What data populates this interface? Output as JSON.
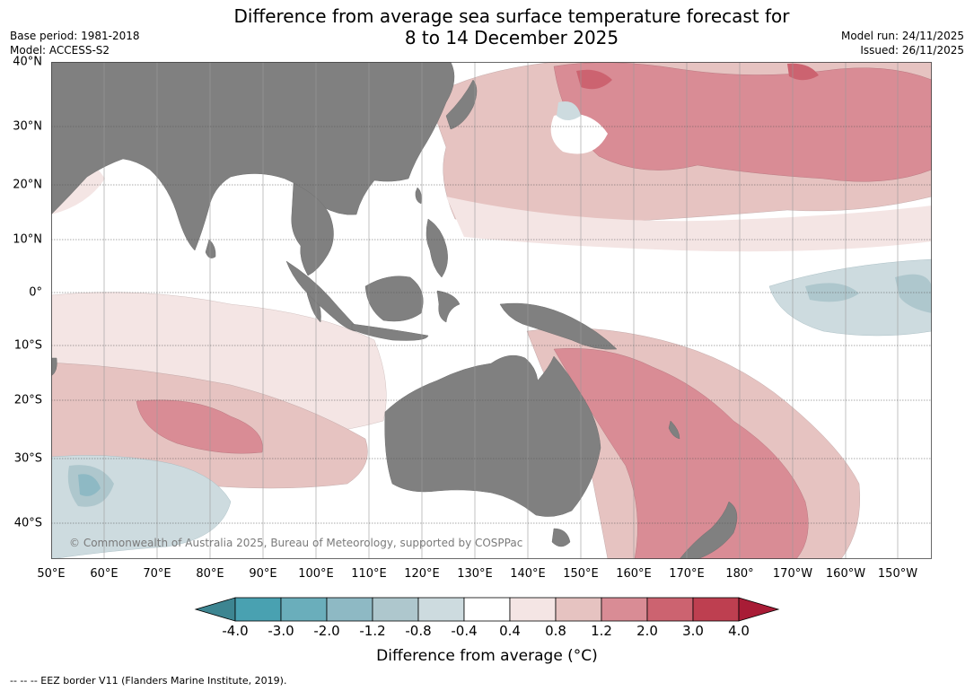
{
  "title": {
    "line1": "Difference from average sea surface temperature forecast for",
    "line2": "8 to 14 December 2025"
  },
  "meta": {
    "base_period": "Base period: 1981-2018",
    "model": "Model: ACCESS-S2",
    "model_run": "Model run: 24/11/2025",
    "issued": "Issued: 26/11/2025"
  },
  "map": {
    "lat_labels": [
      "40°N",
      "30°N",
      "20°N",
      "10°N",
      "0°",
      "10°S",
      "20°S",
      "30°S",
      "40°S"
    ],
    "lon_labels": [
      "50°E",
      "60°E",
      "70°E",
      "80°E",
      "90°E",
      "100°E",
      "110°E",
      "120°E",
      "130°E",
      "140°E",
      "150°E",
      "160°E",
      "170°E",
      "180°",
      "170°W",
      "160°W",
      "150°W"
    ],
    "land_color": "#808080",
    "copyright": "© Commonwealth of Australia 2025, Bureau of Meteorology, supported by COSPPac"
  },
  "colorbar": {
    "ticks": [
      "-4.0",
      "-3.0",
      "-2.0",
      "-1.2",
      "-0.8",
      "-0.4",
      "0.4",
      "0.8",
      "1.2",
      "2.0",
      "3.0",
      "4.0"
    ],
    "colors": [
      "#3d8591",
      "#49a1b1",
      "#6aaebb",
      "#8eb9c4",
      "#aec7cd",
      "#cddbdf",
      "#ffffff",
      "#f4e5e4",
      "#e6c3c1",
      "#d98c95",
      "#cc6370",
      "#be3f50",
      "#a81c36"
    ],
    "label": "Difference from average (°C)"
  },
  "footnote": "--  --  -- EEZ border V11 (Flanders Marine Institute, 2019)."
}
